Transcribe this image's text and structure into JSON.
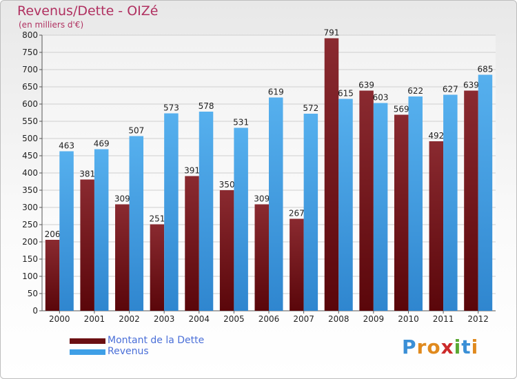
{
  "header": {
    "title": "Revenus/Dette - OIZé",
    "subtitle": "(en milliers d'€)"
  },
  "legend": {
    "items": [
      {
        "label": "Montant de la Dette",
        "color": "#6b0f12"
      },
      {
        "label": "Revenus",
        "color": "#3f9fe6"
      }
    ]
  },
  "logo": {
    "text": "Proxiti",
    "letters": [
      {
        "ch": "P",
        "color": "#3a8fd6"
      },
      {
        "ch": "r",
        "color": "#e08a1e"
      },
      {
        "ch": "o",
        "color": "#e08a1e"
      },
      {
        "ch": "x",
        "color": "#cc2a2a"
      },
      {
        "ch": "i",
        "color": "#5aa832"
      },
      {
        "ch": "t",
        "color": "#3a8fd6"
      },
      {
        "ch": "i",
        "color": "#e08a1e"
      }
    ]
  },
  "chart_data": {
    "type": "bar",
    "title": "Revenus/Dette - OIZé",
    "subtitle": "(en milliers d'€)",
    "categories": [
      "2000",
      "2001",
      "2002",
      "2003",
      "2004",
      "2005",
      "2006",
      "2007",
      "2008",
      "2009",
      "2010",
      "2011",
      "2012"
    ],
    "series": [
      {
        "name": "Montant de la Dette",
        "color": "#7a1f24",
        "values": [
          206,
          381,
          309,
          251,
          391,
          350,
          309,
          267,
          791,
          639,
          569,
          492,
          639
        ]
      },
      {
        "name": "Revenus",
        "color": "#4aa6ea",
        "values": [
          463,
          469,
          507,
          573,
          578,
          531,
          619,
          572,
          615,
          603,
          622,
          627,
          685
        ]
      }
    ],
    "ylim": [
      0,
      800
    ],
    "yticks": [
      0,
      50,
      100,
      150,
      200,
      250,
      300,
      350,
      400,
      450,
      500,
      550,
      600,
      650,
      700,
      750,
      800
    ],
    "grid": true,
    "legend": "bottom-left"
  }
}
